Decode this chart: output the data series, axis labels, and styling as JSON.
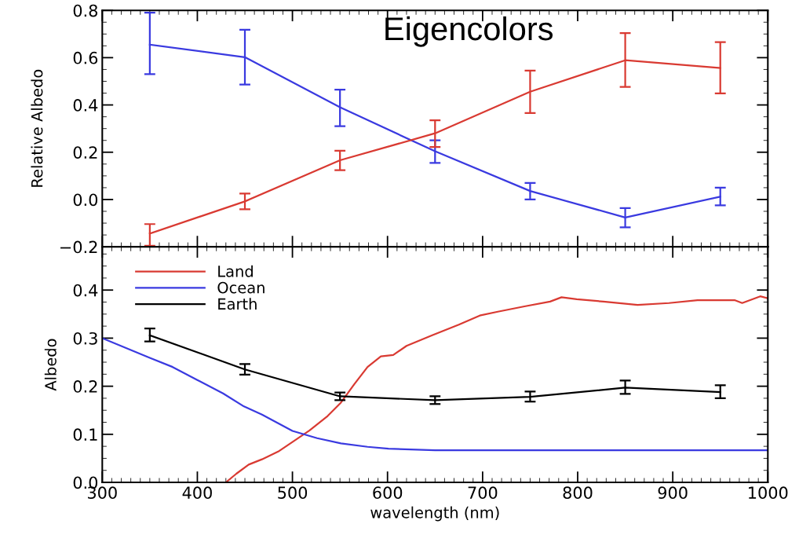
{
  "chart_data": [
    {
      "type": "line",
      "title": "Eigencolors",
      "ylabel": "Relative Albedo",
      "x": [
        350,
        450,
        550,
        650,
        750,
        850,
        950
      ],
      "xlim": [
        300,
        1000
      ],
      "xticks": [
        300,
        400,
        500,
        600,
        700,
        800,
        900,
        1000
      ],
      "ylim": [
        -0.2,
        0.8
      ],
      "yticks": [
        {
          "value": -0.2,
          "label": "−0.2"
        },
        {
          "value": 0,
          "label": "0.0"
        },
        {
          "value": 0.2,
          "label": "0.2"
        },
        {
          "value": 0.4,
          "label": "0.4"
        },
        {
          "value": 0.6,
          "label": "0.6"
        },
        {
          "value": 0.8,
          "label": "0.8"
        }
      ],
      "tick_labels": "y",
      "series": [
        {
          "color": "#3a3ae0",
          "values": [
            0.655,
            0.602,
            0.39,
            0.204,
            0.036,
            -0.076,
            0.012
          ],
          "errors": [
            [
              0.53,
              0.79
            ],
            [
              0.486,
              0.718
            ],
            [
              0.31,
              0.465
            ],
            [
              0.155,
              0.25
            ],
            [
              0.0,
              0.07
            ],
            [
              -0.118,
              -0.036
            ],
            [
              -0.025,
              0.05
            ]
          ]
        },
        {
          "color": "#d93a32",
          "values": [
            -0.144,
            -0.008,
            0.166,
            0.28,
            0.456,
            0.589,
            0.556
          ],
          "errors": [
            [
              -0.196,
              -0.104
            ],
            [
              -0.041,
              0.025
            ],
            [
              0.124,
              0.206
            ],
            [
              0.222,
              0.335
            ],
            [
              0.366,
              0.545
            ],
            [
              0.476,
              0.704
            ],
            [
              0.449,
              0.666
            ]
          ]
        }
      ]
    },
    {
      "type": "line",
      "xlabel": "wavelength (nm)",
      "ylabel": "Albedo",
      "xlim": [
        300,
        1000
      ],
      "xticks": [
        300,
        400,
        500,
        600,
        700,
        800,
        900,
        1000
      ],
      "ylim": [
        0,
        0.49
      ],
      "yticks": [
        {
          "value": 0,
          "label": "0.0"
        },
        {
          "value": 0.1,
          "label": "0.1"
        },
        {
          "value": 0.2,
          "label": "0.2"
        },
        {
          "value": 0.3,
          "label": "0.3"
        },
        {
          "value": 0.4,
          "label": "0.4"
        }
      ],
      "legend": "top left",
      "series": [
        {
          "name": "Land",
          "color": "#d93a32",
          "x": [
            430,
            441,
            454,
            468,
            485,
            500,
            518,
            537,
            551,
            565,
            579,
            593,
            606,
            620,
            647,
            675,
            697,
            716,
            744,
            771,
            783,
            799,
            827,
            863,
            896,
            926,
            965,
            973,
            992,
            1000
          ],
          "values": [
            0.0,
            0.018,
            0.037,
            0.048,
            0.064,
            0.084,
            0.108,
            0.138,
            0.166,
            0.204,
            0.24,
            0.262,
            0.265,
            0.284,
            0.306,
            0.328,
            0.347,
            0.355,
            0.366,
            0.376,
            0.385,
            0.381,
            0.376,
            0.369,
            0.373,
            0.379,
            0.379,
            0.373,
            0.387,
            0.383
          ]
        },
        {
          "name": "Ocean",
          "color": "#3a3ae0",
          "x": [
            300,
            350,
            374,
            400,
            427,
            449,
            468,
            500,
            526,
            551,
            579,
            601,
            650,
            700,
            800,
            900,
            1000
          ],
          "values": [
            0.3,
            0.259,
            0.24,
            0.213,
            0.185,
            0.158,
            0.141,
            0.107,
            0.092,
            0.081,
            0.074,
            0.07,
            0.067,
            0.067,
            0.067,
            0.067,
            0.067
          ]
        },
        {
          "name": "Earth",
          "color": "#000000",
          "x": [
            350,
            450,
            550,
            650,
            750,
            850,
            950
          ],
          "values": [
            0.306,
            0.235,
            0.179,
            0.171,
            0.178,
            0.197,
            0.188
          ],
          "errors": [
            [
              0.293,
              0.32
            ],
            [
              0.224,
              0.246
            ],
            [
              0.171,
              0.187
            ],
            [
              0.163,
              0.179
            ],
            [
              0.168,
              0.189
            ],
            [
              0.184,
              0.212
            ],
            [
              0.175,
              0.202
            ]
          ]
        }
      ]
    }
  ]
}
